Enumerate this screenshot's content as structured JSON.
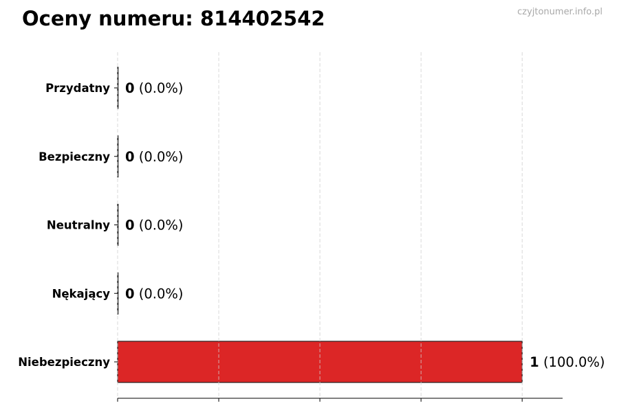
{
  "title": "Oceny numeru: 814402542",
  "watermark": "czyjtonumer.info.pl",
  "chart_data": {
    "type": "bar",
    "orientation": "horizontal",
    "title": "Oceny numeru: 814402542",
    "categories": [
      "Przydatny",
      "Bezpieczny",
      "Neutralny",
      "Nękający",
      "Niebezpieczny"
    ],
    "values": [
      0,
      0,
      0,
      0,
      1
    ],
    "percent_labels": [
      "(0.0%)",
      "(0.0%)",
      "(0.0%)",
      "(0.0%)",
      "(100.0%)"
    ],
    "colors": [
      "#16a34a",
      "#22c55e",
      "#9ca3af",
      "#f97316",
      "#dc2626"
    ],
    "xlim": [
      0,
      1.1
    ],
    "xticks": [
      0,
      0.25,
      0.5,
      0.75,
      1
    ],
    "xtick_labels_shown": false,
    "grid": "x-dashed",
    "xlabel": "",
    "ylabel": ""
  }
}
